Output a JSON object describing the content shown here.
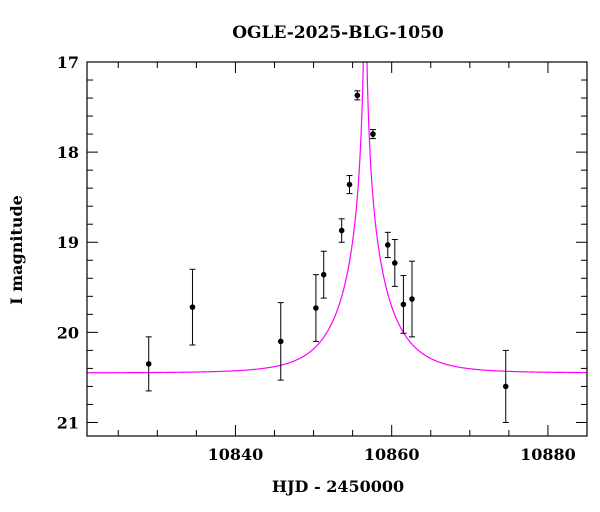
{
  "chart_data": {
    "type": "scatter",
    "title": "OGLE-2025-BLG-1050",
    "xlabel": "HJD - 2450000",
    "ylabel": "I magnitude",
    "xlim": [
      10821,
      10885
    ],
    "ylim": [
      21.15,
      17.0
    ],
    "y_inverted": true,
    "xticks": [
      10840,
      10860,
      10880
    ],
    "xtick_labels": [
      "10840",
      "10860",
      "10880"
    ],
    "x_minor_step": 5,
    "yticks": [
      17,
      18,
      19,
      20,
      21
    ],
    "ytick_labels": [
      "17",
      "18",
      "19",
      "20",
      "21"
    ],
    "y_minor_step": 0.2,
    "grid": false,
    "points": [
      {
        "x": 10828.9,
        "y": 20.35,
        "err": 0.3
      },
      {
        "x": 10834.5,
        "y": 19.72,
        "err": 0.42
      },
      {
        "x": 10845.8,
        "y": 20.1,
        "err": 0.43
      },
      {
        "x": 10850.3,
        "y": 19.73,
        "err": 0.37
      },
      {
        "x": 10851.3,
        "y": 19.36,
        "err": 0.26
      },
      {
        "x": 10853.6,
        "y": 18.87,
        "err": 0.13
      },
      {
        "x": 10854.6,
        "y": 18.36,
        "err": 0.1
      },
      {
        "x": 10855.6,
        "y": 17.37,
        "err": 0.05
      },
      {
        "x": 10857.6,
        "y": 17.8,
        "err": 0.05
      },
      {
        "x": 10859.5,
        "y": 19.03,
        "err": 0.14
      },
      {
        "x": 10860.4,
        "y": 19.23,
        "err": 0.26
      },
      {
        "x": 10861.5,
        "y": 19.69,
        "err": 0.32
      },
      {
        "x": 10862.6,
        "y": 19.63,
        "err": 0.42
      },
      {
        "x": 10874.6,
        "y": 20.6,
        "err": 0.4
      }
    ],
    "model": {
      "type": "point-lens",
      "t0": 10856.6,
      "tE": 6.0,
      "u0": 0.015,
      "baseline_mag": 20.45,
      "color": "#ff00ff"
    },
    "point_color": "#000000"
  }
}
